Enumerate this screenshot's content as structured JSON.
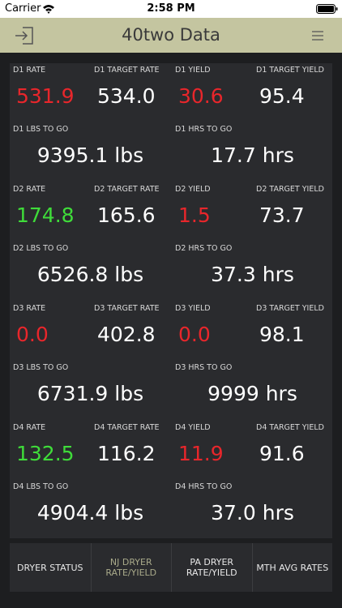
{
  "status_bar": {
    "carrier": "Carrier",
    "time": "2:58 PM"
  },
  "header": {
    "title": "40two Data"
  },
  "dryers": [
    {
      "cells": [
        {
          "label": "D1 RATE",
          "value": "531.9",
          "color": "#e8262b"
        },
        {
          "label": "D1 TARGET RATE",
          "value": "534.0",
          "color": "#ffffff"
        },
        {
          "label": "D1 YIELD",
          "value": "30.6",
          "color": "#e8262b"
        },
        {
          "label": "D1 TARGET YIELD",
          "value": "95.4",
          "color": "#ffffff"
        }
      ],
      "totals": [
        {
          "label": "D1 LBS TO GO",
          "value": "9395.1 lbs"
        },
        {
          "label": "D1 HRS TO GO",
          "value": "17.7 hrs"
        }
      ]
    },
    {
      "cells": [
        {
          "label": "D2 RATE",
          "value": "174.8",
          "color": "#3fdc3a"
        },
        {
          "label": "D2 TARGET RATE",
          "value": "165.6",
          "color": "#ffffff"
        },
        {
          "label": "D2 YIELD",
          "value": "1.5",
          "color": "#e8262b"
        },
        {
          "label": "D2 TARGET YIELD",
          "value": "73.7",
          "color": "#ffffff"
        }
      ],
      "totals": [
        {
          "label": "D2 LBS TO GO",
          "value": "6526.8 lbs"
        },
        {
          "label": "D2 HRS TO GO",
          "value": "37.3 hrs"
        }
      ]
    },
    {
      "cells": [
        {
          "label": "D3 RATE",
          "value": "0.0",
          "color": "#e8262b"
        },
        {
          "label": "D3 TARGET RATE",
          "value": "402.8",
          "color": "#ffffff"
        },
        {
          "label": "D3 YIELD",
          "value": "0.0",
          "color": "#e8262b"
        },
        {
          "label": "D3 TARGET YIELD",
          "value": "98.1",
          "color": "#ffffff"
        }
      ],
      "totals": [
        {
          "label": "D3 LBS TO GO",
          "value": "6731.9 lbs"
        },
        {
          "label": "D3 HRS TO GO",
          "value": "9999 hrs"
        }
      ]
    },
    {
      "cells": [
        {
          "label": "D4 RATE",
          "value": "132.5",
          "color": "#3fdc3a"
        },
        {
          "label": "D4 TARGET RATE",
          "value": "116.2",
          "color": "#ffffff"
        },
        {
          "label": "D4 YIELD",
          "value": "11.9",
          "color": "#e8262b"
        },
        {
          "label": "D4 TARGET YIELD",
          "value": "91.6",
          "color": "#ffffff"
        }
      ],
      "totals": [
        {
          "label": "D4 LBS TO GO",
          "value": "4904.4 lbs"
        },
        {
          "label": "D4 HRS TO GO",
          "value": "37.0 hrs"
        }
      ]
    }
  ],
  "tabs": [
    {
      "lines": [
        "DRYER STATUS"
      ],
      "active": false
    },
    {
      "lines": [
        "NJ DRYER",
        "RATE/YIELD"
      ],
      "active": true
    },
    {
      "lines": [
        "PA DRYER",
        "RATE/YIELD"
      ],
      "active": false
    },
    {
      "lines": [
        "MTH AVG RATES"
      ],
      "active": false
    }
  ]
}
